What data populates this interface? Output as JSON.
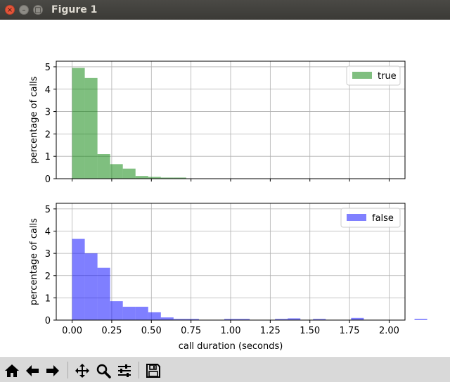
{
  "window": {
    "title": "Figure 1",
    "close_glyph": "×",
    "minimize_glyph": "–",
    "maximize_glyph": "□"
  },
  "toolbar": {
    "icons": [
      "home-icon",
      "back-icon",
      "forward-icon",
      "pan-icon",
      "zoom-icon",
      "configure-subplots-icon",
      "save-icon"
    ]
  },
  "chart_data": [
    {
      "type": "bar",
      "bar_style": "histogram",
      "color": "#008000",
      "alpha": 0.5,
      "ylabel": "percentage of calls",
      "xlabel": "",
      "xlim": [
        -0.1,
        2.1
      ],
      "ylim": [
        0,
        5.25
      ],
      "xticks": [
        0.0,
        0.25,
        0.5,
        0.75,
        1.0,
        1.25,
        1.5,
        1.75,
        2.0
      ],
      "yticks": [
        0,
        1,
        2,
        3,
        4,
        5
      ],
      "show_xticklabels": false,
      "grid": true,
      "legend": {
        "label": "true",
        "position": "top-right",
        "color": "#80bf80"
      },
      "bin_width": 0.08,
      "bin_start": 0.0,
      "values": [
        4.95,
        4.5,
        1.1,
        0.65,
        0.45,
        0.12,
        0.08,
        0.05,
        0.05
      ]
    },
    {
      "type": "bar",
      "bar_style": "histogram",
      "color": "#0000ff",
      "alpha": 0.5,
      "ylabel": "percentage of calls",
      "xlabel": "call duration (seconds)",
      "xlim": [
        -0.1,
        2.1
      ],
      "ylim": [
        0,
        5.25
      ],
      "xticks": [
        0.0,
        0.25,
        0.5,
        0.75,
        1.0,
        1.25,
        1.5,
        1.75,
        2.0
      ],
      "xticklabels": [
        "0.00",
        "0.25",
        "0.50",
        "0.75",
        "1.00",
        "1.25",
        "1.50",
        "1.75",
        "2.00"
      ],
      "yticks": [
        0,
        1,
        2,
        3,
        4,
        5
      ],
      "show_xticklabels": true,
      "grid": true,
      "legend": {
        "label": "false",
        "position": "top-right",
        "color": "#8080ff"
      },
      "bin_width": 0.08,
      "bin_start": 0.0,
      "values": [
        3.65,
        3.0,
        2.35,
        0.85,
        0.6,
        0.6,
        0.35,
        0.12,
        0.05,
        0.05,
        0.0,
        0.0,
        0.05,
        0.05,
        0.0,
        0.0,
        0.05,
        0.08,
        0.0,
        0.05,
        0.0,
        0.0,
        0.1,
        0.0,
        0.0,
        0.0,
        0.0,
        0.05,
        0.0,
        0.0
      ]
    }
  ]
}
